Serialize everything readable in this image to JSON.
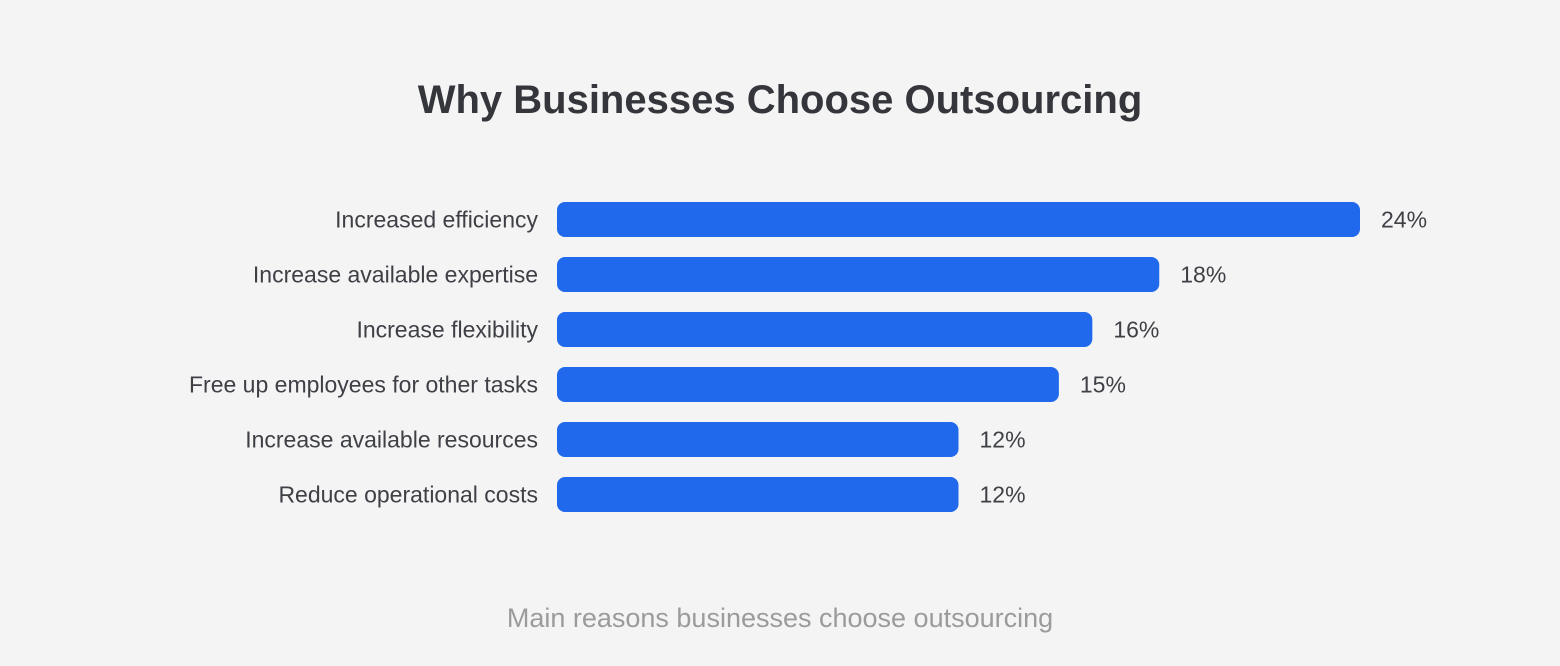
{
  "chart_data": {
    "type": "bar",
    "orientation": "horizontal",
    "title": "Why Businesses Choose Outsourcing",
    "caption": "Main reasons businesses choose outsourcing",
    "categories": [
      "Increased efficiency",
      "Increase available expertise",
      "Increase flexibility",
      "Free up employees for other tasks",
      "Increase available resources",
      "Reduce operational costs"
    ],
    "values": [
      24,
      18,
      16,
      15,
      12,
      12
    ],
    "value_labels": [
      "24%",
      "18%",
      "16%",
      "15%",
      "12%",
      "12%"
    ],
    "unit": "%",
    "grid": false,
    "bar_color": "#2068ec"
  }
}
